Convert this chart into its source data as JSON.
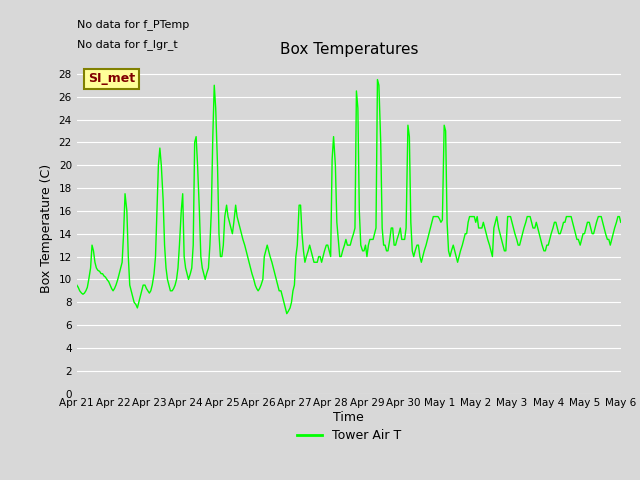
{
  "title": "Box Temperatures",
  "xlabel": "Time",
  "ylabel": "Box Temperature (C)",
  "no_data_texts": [
    "No data for f_PTemp",
    "No data for f_lgr_t"
  ],
  "legend_box_label": "SI_met",
  "legend_line_label": "Tower Air T",
  "ylim": [
    0,
    29
  ],
  "yticks": [
    0,
    2,
    4,
    6,
    8,
    10,
    12,
    14,
    16,
    18,
    20,
    22,
    24,
    26,
    28
  ],
  "line_color": "#00ff00",
  "legend_box_color": "#ffff99",
  "legend_box_text_color": "#800000",
  "legend_box_border_color": "#808000",
  "bg_color": "#d8d8d8",
  "plot_bg_color": "#d8d8d8",
  "x_tick_labels": [
    "Apr 21",
    "Apr 22",
    "Apr 23",
    "Apr 24",
    "Apr 25",
    "Apr 26",
    "Apr 27",
    "Apr 28",
    "Apr 29",
    "Apr 30",
    "May 1",
    "May 2",
    "May 3",
    "May 4",
    "May 5",
    "May 6"
  ],
  "x_values": [
    0.0,
    0.04,
    0.08,
    0.13,
    0.17,
    0.21,
    0.25,
    0.29,
    0.33,
    0.38,
    0.42,
    0.46,
    0.5,
    0.54,
    0.58,
    0.63,
    0.67,
    0.71,
    0.75,
    0.79,
    0.83,
    0.88,
    0.92,
    0.96,
    1.0,
    1.04,
    1.08,
    1.13,
    1.17,
    1.21,
    1.25,
    1.29,
    1.33,
    1.38,
    1.42,
    1.46,
    1.5,
    1.54,
    1.58,
    1.63,
    1.67,
    1.71,
    1.75,
    1.79,
    1.83,
    1.88,
    1.92,
    1.96,
    2.0,
    2.04,
    2.08,
    2.13,
    2.17,
    2.21,
    2.25,
    2.29,
    2.33,
    2.38,
    2.42,
    2.46,
    2.5,
    2.54,
    2.58,
    2.63,
    2.67,
    2.71,
    2.75,
    2.79,
    2.83,
    2.88,
    2.92,
    2.96,
    3.0,
    3.04,
    3.08,
    3.13,
    3.17,
    3.21,
    3.25,
    3.29,
    3.33,
    3.38,
    3.42,
    3.46,
    3.5,
    3.54,
    3.58,
    3.63,
    3.67,
    3.71,
    3.75,
    3.79,
    3.83,
    3.88,
    3.92,
    3.96,
    4.0,
    4.04,
    4.08,
    4.13,
    4.17,
    4.21,
    4.25,
    4.29,
    4.33,
    4.38,
    4.42,
    4.46,
    4.5,
    4.54,
    4.58,
    4.63,
    4.67,
    4.71,
    4.75,
    4.79,
    4.83,
    4.88,
    4.92,
    4.96,
    5.0,
    5.04,
    5.08,
    5.13,
    5.17,
    5.21,
    5.25,
    5.29,
    5.33,
    5.38,
    5.42,
    5.46,
    5.5,
    5.54,
    5.58,
    5.63,
    5.67,
    5.71,
    5.75,
    5.79,
    5.83,
    5.88,
    5.92,
    5.96,
    6.0,
    6.04,
    6.08,
    6.13,
    6.17,
    6.21,
    6.25,
    6.29,
    6.33,
    6.38,
    6.42,
    6.46,
    6.5,
    6.54,
    6.58,
    6.63,
    6.67,
    6.71,
    6.75,
    6.79,
    6.83,
    6.88,
    6.92,
    6.96,
    7.0,
    7.04,
    7.08,
    7.13,
    7.17,
    7.21,
    7.25,
    7.29,
    7.33,
    7.38,
    7.42,
    7.46,
    7.5,
    7.54,
    7.58,
    7.63,
    7.67,
    7.71,
    7.75,
    7.79,
    7.83,
    7.88,
    7.92,
    7.96,
    8.0,
    8.04,
    8.08,
    8.13,
    8.17,
    8.21,
    8.25,
    8.29,
    8.33,
    8.38,
    8.42,
    8.46,
    8.5,
    8.54,
    8.58,
    8.63,
    8.67,
    8.71,
    8.75,
    8.79,
    8.83,
    8.88,
    8.92,
    8.96,
    9.0,
    9.04,
    9.08,
    9.13,
    9.17,
    9.21,
    9.25,
    9.29,
    9.33,
    9.38,
    9.42,
    9.46,
    9.5,
    9.54,
    9.58,
    9.63,
    9.67,
    9.71,
    9.75,
    9.79,
    9.83,
    9.88,
    9.92,
    9.96,
    10.0,
    10.04,
    10.08,
    10.13,
    10.17,
    10.21,
    10.25,
    10.29,
    10.33,
    10.38,
    10.42,
    10.46,
    10.5,
    10.54,
    10.58,
    10.63,
    10.67,
    10.71,
    10.75,
    10.79,
    10.83,
    10.88,
    10.92,
    10.96,
    11.0,
    11.04,
    11.08,
    11.13,
    11.17,
    11.21,
    11.25,
    11.29,
    11.33,
    11.38,
    11.42,
    11.46,
    11.5,
    11.54,
    11.58,
    11.63,
    11.67,
    11.71,
    11.75,
    11.79,
    11.83,
    11.88,
    11.92,
    11.96,
    12.0,
    12.04,
    12.08,
    12.13,
    12.17,
    12.21,
    12.25,
    12.29,
    12.33,
    12.38,
    12.42,
    12.46,
    12.5,
    12.54,
    12.58,
    12.63,
    12.67,
    12.71,
    12.75,
    12.79,
    12.83,
    12.88,
    12.92,
    12.96,
    13.0,
    13.04,
    13.08,
    13.13,
    13.17,
    13.21,
    13.25,
    13.29,
    13.33,
    13.38,
    13.42,
    13.46,
    13.5,
    13.54,
    13.58,
    13.63,
    13.67,
    13.71,
    13.75,
    13.79,
    13.83,
    13.88,
    13.92,
    13.96,
    14.0,
    14.04,
    14.08,
    14.13,
    14.17,
    14.21,
    14.25,
    14.29,
    14.33,
    14.38,
    14.42,
    14.46,
    14.5,
    14.54,
    14.58,
    14.63,
    14.67,
    14.71,
    14.75,
    14.79,
    14.83,
    14.88,
    14.92,
    14.96,
    15.0
  ],
  "y_values": [
    9.5,
    9.3,
    9.0,
    8.8,
    8.7,
    8.8,
    9.0,
    9.3,
    10.0,
    11.0,
    13.0,
    12.5,
    11.5,
    11.0,
    10.8,
    10.7,
    10.5,
    10.5,
    10.3,
    10.2,
    10.0,
    9.8,
    9.5,
    9.2,
    9.0,
    9.2,
    9.5,
    10.0,
    10.5,
    11.0,
    11.5,
    14.0,
    17.5,
    16.0,
    12.0,
    9.5,
    9.0,
    8.5,
    8.0,
    7.8,
    7.5,
    8.0,
    8.5,
    9.0,
    9.5,
    9.5,
    9.2,
    9.0,
    8.8,
    9.0,
    9.5,
    10.5,
    12.0,
    16.0,
    20.0,
    21.5,
    20.0,
    17.0,
    13.0,
    11.0,
    10.0,
    9.5,
    9.0,
    9.0,
    9.2,
    9.5,
    10.0,
    11.0,
    13.0,
    16.0,
    17.5,
    12.0,
    11.0,
    10.5,
    10.0,
    10.5,
    11.0,
    13.0,
    22.0,
    22.5,
    20.0,
    16.0,
    12.0,
    11.0,
    10.5,
    10.0,
    10.5,
    11.0,
    13.0,
    16.0,
    22.5,
    27.0,
    25.0,
    20.0,
    14.0,
    12.0,
    12.0,
    13.0,
    15.5,
    16.5,
    15.5,
    15.0,
    14.5,
    14.0,
    15.0,
    16.5,
    15.5,
    15.0,
    14.5,
    14.0,
    13.5,
    13.0,
    12.5,
    12.0,
    11.5,
    11.0,
    10.5,
    10.0,
    9.5,
    9.2,
    9.0,
    9.2,
    9.5,
    10.0,
    12.0,
    12.5,
    13.0,
    12.5,
    12.0,
    11.5,
    11.0,
    10.5,
    10.0,
    9.5,
    9.0,
    9.0,
    8.5,
    8.0,
    7.5,
    7.0,
    7.2,
    7.5,
    8.0,
    9.0,
    9.5,
    12.0,
    13.0,
    16.5,
    16.5,
    14.0,
    12.5,
    11.5,
    12.0,
    12.5,
    13.0,
    12.5,
    12.0,
    11.5,
    11.5,
    11.5,
    12.0,
    12.0,
    11.5,
    12.0,
    12.5,
    13.0,
    13.0,
    12.5,
    12.0,
    20.5,
    22.5,
    20.0,
    15.0,
    13.5,
    12.0,
    12.0,
    12.5,
    13.0,
    13.5,
    13.0,
    13.0,
    13.0,
    13.5,
    14.0,
    14.5,
    26.5,
    25.0,
    16.0,
    13.0,
    12.5,
    12.5,
    13.0,
    12.0,
    13.0,
    13.5,
    13.5,
    13.5,
    14.0,
    14.5,
    27.5,
    27.0,
    22.0,
    14.5,
    13.0,
    13.0,
    12.5,
    12.5,
    13.5,
    14.5,
    14.5,
    13.0,
    13.0,
    13.5,
    14.0,
    14.5,
    13.5,
    13.5,
    13.5,
    14.5,
    23.5,
    22.5,
    15.0,
    12.5,
    12.0,
    12.5,
    13.0,
    13.0,
    12.0,
    11.5,
    12.0,
    12.5,
    13.0,
    13.5,
    14.0,
    14.5,
    15.0,
    15.5,
    15.5,
    15.5,
    15.5,
    15.3,
    15.0,
    15.2,
    23.5,
    23.0,
    15.0,
    12.5,
    12.0,
    12.5,
    13.0,
    12.5,
    12.0,
    11.5,
    12.0,
    12.5,
    13.0,
    13.5,
    14.0,
    14.0,
    15.0,
    15.5,
    15.5,
    15.5,
    15.5,
    15.0,
    15.5,
    14.5,
    14.5,
    14.5,
    15.0,
    14.5,
    14.0,
    13.5,
    13.0,
    12.5,
    12.0,
    14.5,
    15.0,
    15.5,
    14.5,
    14.0,
    13.5,
    13.0,
    12.5,
    12.5,
    15.5,
    15.5,
    15.5,
    15.0,
    14.5,
    14.0,
    13.5,
    13.0,
    13.0,
    13.5,
    14.0,
    14.5,
    15.0,
    15.5,
    15.5,
    15.5,
    15.0,
    14.5,
    14.5,
    15.0,
    14.5,
    14.0,
    13.5,
    13.0,
    12.5,
    12.5,
    13.0,
    13.0,
    13.5,
    14.0,
    14.5,
    15.0,
    15.0,
    14.5,
    14.0,
    14.0,
    14.5,
    15.0,
    15.0,
    15.5,
    15.5,
    15.5,
    15.5,
    15.0,
    14.5,
    14.0,
    13.5,
    13.5,
    13.0,
    13.5,
    14.0,
    14.0,
    14.5,
    15.0,
    15.0,
    14.5,
    14.0,
    14.0,
    14.5,
    15.0,
    15.5,
    15.5,
    15.5,
    15.0,
    14.5,
    14.0,
    13.5,
    13.5,
    13.0,
    13.5,
    14.0,
    14.5,
    15.0,
    15.5,
    15.5,
    15.0
  ]
}
